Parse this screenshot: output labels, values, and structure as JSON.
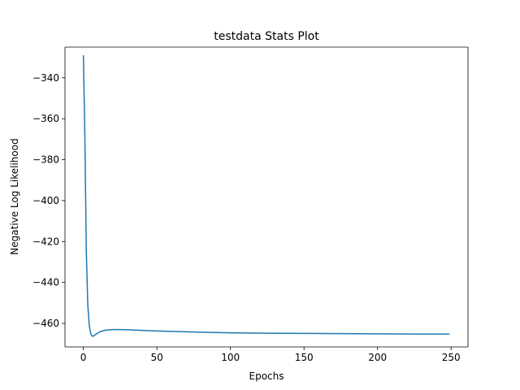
{
  "chart_data": {
    "type": "line",
    "title": "testdata Stats Plot",
    "xlabel": "Epochs",
    "ylabel": "Negative Log Likelihood",
    "xlim": [
      -12.5,
      261.5
    ],
    "ylim": [
      -471.5,
      -325.0
    ],
    "xticks": [
      0,
      50,
      100,
      150,
      200,
      250
    ],
    "yticks": [
      -340,
      -360,
      -380,
      -400,
      -420,
      -440,
      -460
    ],
    "grid": false,
    "series": [
      {
        "name": "testdata",
        "color": "#1f77b4",
        "x": [
          0,
          1,
          2,
          3,
          4,
          5,
          6,
          7,
          8,
          10,
          12,
          15,
          20,
          25,
          30,
          40,
          50,
          60,
          80,
          100,
          125,
          150,
          175,
          200,
          225,
          249
        ],
        "y": [
          -329,
          -368,
          -425,
          -451,
          -461,
          -465,
          -466.3,
          -466.1,
          -465.6,
          -464.6,
          -463.9,
          -463.3,
          -463.0,
          -463.0,
          -463.1,
          -463.4,
          -463.7,
          -463.9,
          -464.3,
          -464.6,
          -464.8,
          -464.9,
          -465.0,
          -465.1,
          -465.2,
          -465.2
        ]
      }
    ]
  }
}
